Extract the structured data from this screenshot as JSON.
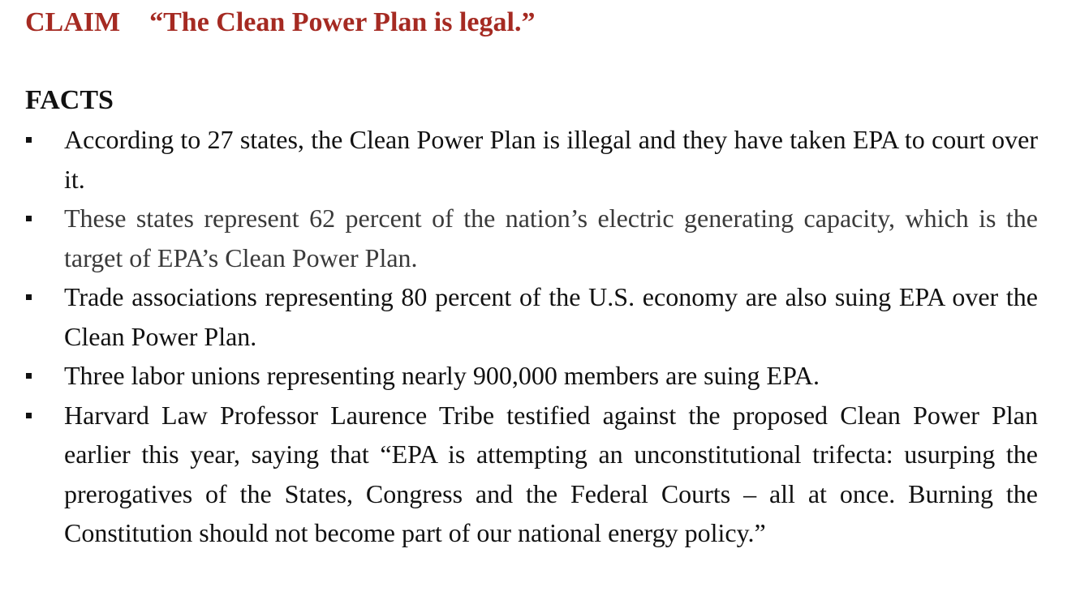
{
  "claim": {
    "label": "CLAIM",
    "quote": "“The Clean Power Plan is legal.”"
  },
  "facts": {
    "heading": "FACTS",
    "items": [
      "According to 27 states, the Clean Power Plan is illegal and they have taken EPA to court over it.",
      "These states represent 62 percent of the nation’s electric generating capacity, which is the target of EPA’s Clean Power Plan.",
      "Trade associations representing 80 percent of the U.S. economy are also suing EPA over the Clean Power Plan.",
      "Three labor unions representing nearly 900,000 members are suing EPA.",
      "Harvard Law Professor Laurence Tribe testified against the proposed Clean Power Plan earlier this year, saying that “EPA is attempting an unconstitutional trifecta: usurping the prerogatives of the States, Congress and the Federal Courts – all at once.  Burning the Constitution should not become part of our national energy policy.”"
    ]
  },
  "colors": {
    "claim": "#a52a22",
    "text": "#111111"
  }
}
